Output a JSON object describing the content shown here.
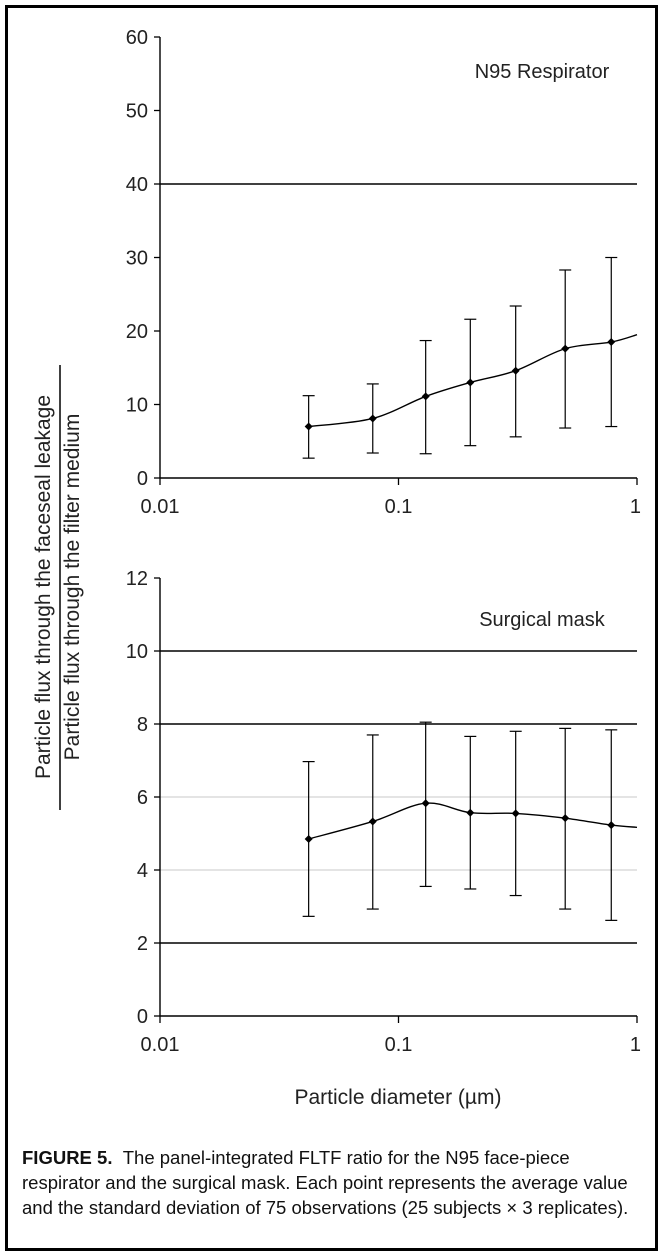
{
  "chart_data": [
    {
      "type": "line",
      "annotation": "N95 Respirator",
      "xscale": "log",
      "xlim": [
        0.01,
        1
      ],
      "ylim": [
        0,
        60
      ],
      "x_ticks": [
        "0.01",
        "0.1",
        "1"
      ],
      "y_ticks": [
        "0",
        "10",
        "20",
        "30",
        "40",
        "50",
        "60"
      ],
      "series": [
        {
          "x": [
            0.042,
            0.078,
            0.13,
            0.2,
            0.31,
            0.5,
            0.78,
            1.0
          ],
          "y": [
            7.0,
            8.1,
            11.1,
            13.0,
            14.6,
            17.6,
            18.5,
            19.5
          ],
          "err_low": [
            2.7,
            3.4,
            3.3,
            4.4,
            5.6,
            6.8,
            7.0,
            null
          ],
          "err_high": [
            11.2,
            12.8,
            18.7,
            21.6,
            23.4,
            28.3,
            30.0,
            null
          ]
        }
      ],
      "gridlines_y": [
        40
      ],
      "grid": false
    },
    {
      "type": "line",
      "annotation": "Surgical mask",
      "xscale": "log",
      "xlim": [
        0.01,
        1
      ],
      "ylim": [
        0,
        12
      ],
      "x_ticks": [
        "0.01",
        "0.1",
        "1"
      ],
      "y_ticks": [
        "0",
        "2",
        "4",
        "6",
        "8",
        "10",
        "12"
      ],
      "series": [
        {
          "x": [
            0.042,
            0.078,
            0.13,
            0.2,
            0.31,
            0.5,
            0.78,
            1.0
          ],
          "y": [
            4.85,
            5.33,
            5.83,
            5.57,
            5.55,
            5.42,
            5.23,
            5.17
          ],
          "err_low": [
            2.73,
            2.93,
            3.55,
            3.48,
            3.3,
            2.93,
            2.62,
            null
          ],
          "err_high": [
            6.97,
            7.7,
            8.05,
            7.66,
            7.8,
            7.88,
            7.84,
            null
          ]
        }
      ],
      "gridlines_y": [
        2,
        8,
        10
      ],
      "light_gridlines_y": [
        4,
        6
      ],
      "grid": false
    }
  ],
  "axes": {
    "ylabel_numerator": "Particle flux through the faceseal leakage",
    "ylabel_denominator": "Particle flux through the filter medium",
    "xlabel": "Particle diameter (µm)"
  },
  "caption": {
    "label": "FIGURE 5.",
    "text": "The panel-integrated FLTF ratio for the N95 face-piece respirator and the surgical mask. Each point represents the average value and the standard deviation of 75 observations (25 subjects × 3 replicates)."
  }
}
